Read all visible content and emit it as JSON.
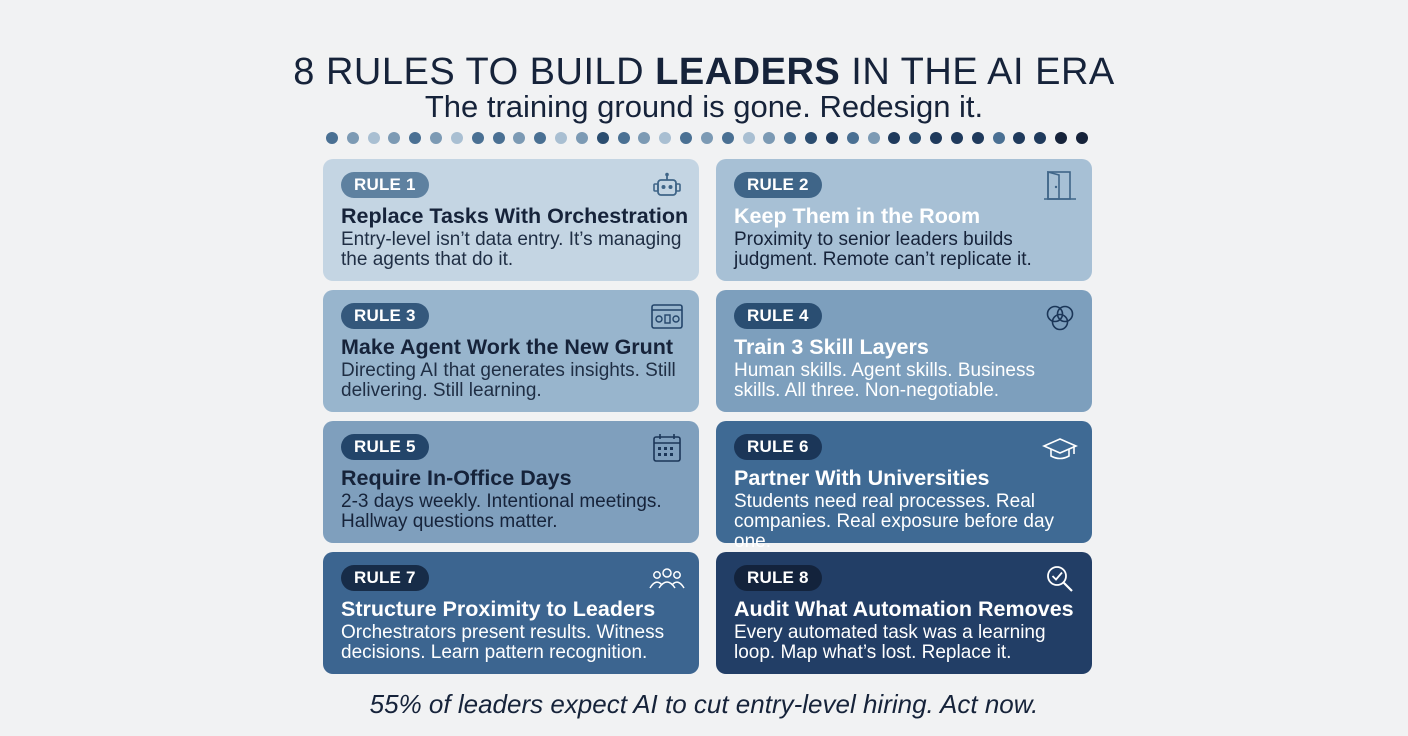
{
  "header": {
    "title_pre": "8 RULES TO BUILD ",
    "title_bold": "LEADERS",
    "title_post": " IN THE AI ERA",
    "subtitle": "The training ground is gone. Redesign it."
  },
  "dot_colors": [
    "#4a7093",
    "#7c9ab4",
    "#a9bfd2",
    "#7c9ab4",
    "#4a7093",
    "#7c9ab4",
    "#a9bfd2",
    "#4a7093",
    "#4a7093",
    "#7c9ab4",
    "#4a7093",
    "#a9bfd2",
    "#7c9ab4",
    "#2b4d70",
    "#4a7093",
    "#7c9ab4",
    "#a9bfd2",
    "#4a7093",
    "#7c9ab4",
    "#4a7093",
    "#a9bfd2",
    "#7c9ab4",
    "#4a7093",
    "#2b4d70",
    "#1f3a5c",
    "#4a7093",
    "#7c9ab4",
    "#1f3a5c",
    "#2b4d70",
    "#1f3a5c",
    "#1f3a5c",
    "#1f3a5c",
    "#4a7093",
    "#1f3a5c",
    "#1f3a5c",
    "#16233a",
    "#16233a"
  ],
  "rules": [
    {
      "badge": "RULE 1",
      "title": "Replace Tasks With Orchestration",
      "desc": "Entry-level isn’t data entry. It’s managing the agents that do it.",
      "icon": "robot-icon",
      "bg": "#c4d5e3",
      "badge_bg": "#5e81a0",
      "text_color": "#16233a",
      "desc_color": "#1f2e44"
    },
    {
      "badge": "RULE 2",
      "title": "Keep Them in the Room",
      "desc": "Proximity to senior leaders builds judgment. Remote can’t replicate it.",
      "icon": "door-icon",
      "bg": "#a7c0d5",
      "badge_bg": "#3f6588",
      "text_color": "#ffffff",
      "desc_color": "#16233a"
    },
    {
      "badge": "RULE 3",
      "title": "Make Agent Work the New Grunt",
      "desc": "Directing AI that generates insights. Still delivering. Still learning.",
      "icon": "dashboard-icon",
      "bg": "#98b5cd",
      "badge_bg": "#34587c",
      "text_color": "#16233a",
      "desc_color": "#1f2e44"
    },
    {
      "badge": "RULE 4",
      "title": "Train 3 Skill Layers",
      "desc": "Human skills. Agent skills. Business skills.  All three. Non-negotiable.",
      "icon": "venn-icon",
      "bg": "#7d9fbd",
      "badge_bg": "#2a4e72",
      "text_color": "#ffffff",
      "desc_color": "#ffffff"
    },
    {
      "badge": "RULE 5",
      "title": "Require In-Office Days",
      "desc": "2-3 days weekly. Intentional meetings. Hallway questions matter.",
      "icon": "calendar-icon",
      "bg": "#7f9fbd",
      "badge_bg": "#23456a",
      "text_color": "#16233a",
      "desc_color": "#16233a"
    },
    {
      "badge": "RULE 6",
      "title": "Partner With Universities",
      "desc": "Students need real processes. Real companies. Real exposure before day one.",
      "icon": "graduation-cap-icon",
      "bg": "#3f6a94",
      "badge_bg": "#1b3658",
      "text_color": "#ffffff",
      "desc_color": "#ffffff"
    },
    {
      "badge": "RULE 7",
      "title": "Structure Proximity to Leaders",
      "desc": "Orchestrators present results. Witness decisions. Learn pattern recognition.",
      "icon": "people-icon",
      "bg": "#3c6590",
      "badge_bg": "#172c48",
      "text_color": "#ffffff",
      "desc_color": "#ffffff"
    },
    {
      "badge": "RULE 8",
      "title": "Audit What Automation Removes",
      "desc": "Every automated task was a learning loop. Map what’s lost. Replace it.",
      "icon": "magnifier-check-icon",
      "bg": "#223e66",
      "badge_bg": "#13233c",
      "text_color": "#ffffff",
      "desc_color": "#ffffff"
    }
  ],
  "footer": "55% of leaders expect AI to cut entry-level hiring. Act now."
}
